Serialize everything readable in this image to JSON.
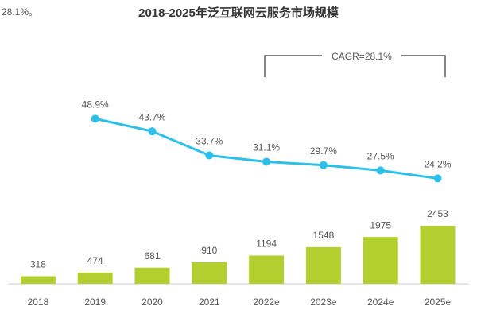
{
  "chart_data": {
    "type": "bar-line",
    "title": "2018-2025年泛互联网云服务市场规模",
    "note": "28.1%。",
    "annotation": "CAGR=28.1%",
    "categories": [
      "2018",
      "2019",
      "2020",
      "2021",
      "2022e",
      "2023e",
      "2024e",
      "2025e"
    ],
    "series": [
      {
        "type": "bar",
        "color": "#b2cf2f",
        "values": [
          318,
          474,
          681,
          910,
          1194,
          1548,
          1975,
          2453
        ]
      },
      {
        "type": "line",
        "color": "#2bbfea",
        "values": [
          null,
          48.9,
          43.7,
          33.7,
          31.1,
          29.7,
          27.5,
          24.2
        ],
        "value_labels": [
          null,
          "48.9%",
          "43.7%",
          "33.7%",
          "31.1%",
          "29.7%",
          "27.5%",
          "24.2%"
        ]
      }
    ]
  }
}
